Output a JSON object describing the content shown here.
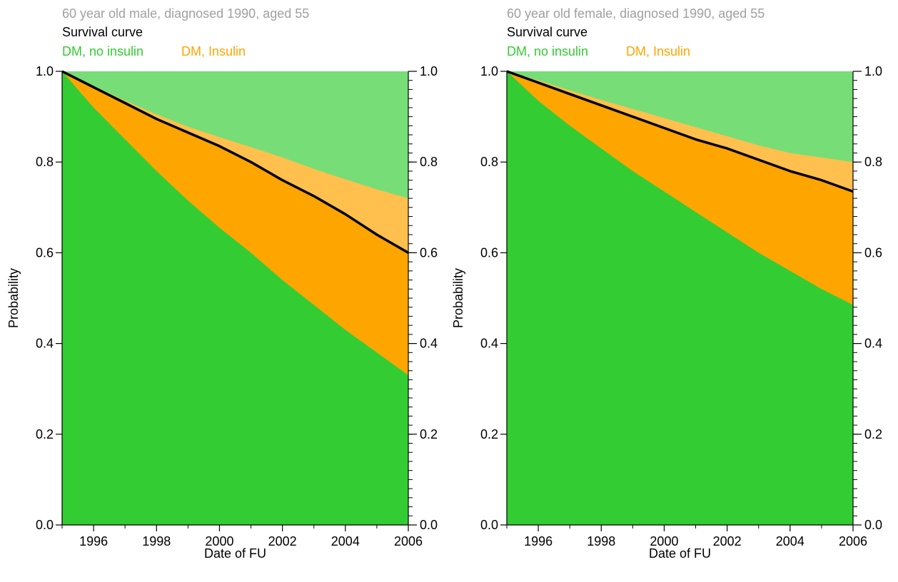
{
  "chart_data": [
    {
      "type": "area",
      "title": "60 year old male, diagnosed 1990, aged 55",
      "subtitle": "Survival curve",
      "legend": [
        "DM, no insulin",
        "DM, Insulin"
      ],
      "xlabel": "Date of FU",
      "ylabel": "Probability",
      "xlim": [
        1995,
        2006
      ],
      "ylim": [
        0,
        1
      ],
      "x_ticks": [
        1996,
        1998,
        2000,
        2002,
        2004,
        2006
      ],
      "y_ticks": [
        "0.0",
        "0.2",
        "0.4",
        "0.6",
        "0.8",
        "1.0"
      ],
      "x": [
        1995,
        1996,
        1997,
        1998,
        1999,
        2000,
        2001,
        2002,
        2003,
        2004,
        2005,
        2006
      ],
      "series": [
        {
          "name": "DM, no insulin",
          "values": [
            1.0,
            0.92,
            0.85,
            0.78,
            0.715,
            0.655,
            0.6,
            0.54,
            0.485,
            0.43,
            0.38,
            0.33
          ]
        },
        {
          "name": "DM, Insulin",
          "values": [
            1.0,
            0.968,
            0.935,
            0.905,
            0.878,
            0.855,
            0.833,
            0.81,
            0.785,
            0.762,
            0.74,
            0.72
          ]
        },
        {
          "name": "Survival curve",
          "values": [
            1.0,
            0.965,
            0.93,
            0.895,
            0.865,
            0.835,
            0.8,
            0.76,
            0.725,
            0.685,
            0.64,
            0.6
          ]
        }
      ],
      "colors": {
        "no_insulin": "#33cc33",
        "insulin": "#ffa500",
        "insulin_light": "#ffc04d",
        "background": "#77dd77",
        "survival": "#000000",
        "title": "#a0a0a0"
      }
    },
    {
      "type": "area",
      "title": "60 year old female, diagnosed 1990, aged 55",
      "subtitle": "Survival curve",
      "legend": [
        "DM, no insulin",
        "DM, Insulin"
      ],
      "xlabel": "Date of FU",
      "ylabel": "Probability",
      "xlim": [
        1995,
        2006
      ],
      "ylim": [
        0,
        1
      ],
      "x_ticks": [
        1996,
        1998,
        2000,
        2002,
        2004,
        2006
      ],
      "y_ticks": [
        "0.0",
        "0.2",
        "0.4",
        "0.6",
        "0.8",
        "1.0"
      ],
      "x": [
        1995,
        1996,
        1997,
        1998,
        1999,
        2000,
        2001,
        2002,
        2003,
        2004,
        2005,
        2006
      ],
      "series": [
        {
          "name": "DM, no insulin",
          "values": [
            1.0,
            0.935,
            0.88,
            0.83,
            0.78,
            0.735,
            0.69,
            0.645,
            0.6,
            0.56,
            0.52,
            0.485
          ]
        },
        {
          "name": "DM, Insulin",
          "values": [
            1.0,
            0.98,
            0.958,
            0.937,
            0.917,
            0.897,
            0.877,
            0.857,
            0.837,
            0.82,
            0.81,
            0.8
          ]
        },
        {
          "name": "Survival curve",
          "values": [
            1.0,
            0.975,
            0.95,
            0.925,
            0.9,
            0.875,
            0.85,
            0.83,
            0.805,
            0.78,
            0.76,
            0.735
          ]
        }
      ],
      "colors": {
        "no_insulin": "#33cc33",
        "insulin": "#ffa500",
        "insulin_light": "#ffc04d",
        "background": "#77dd77",
        "survival": "#000000",
        "title": "#a0a0a0"
      }
    }
  ]
}
